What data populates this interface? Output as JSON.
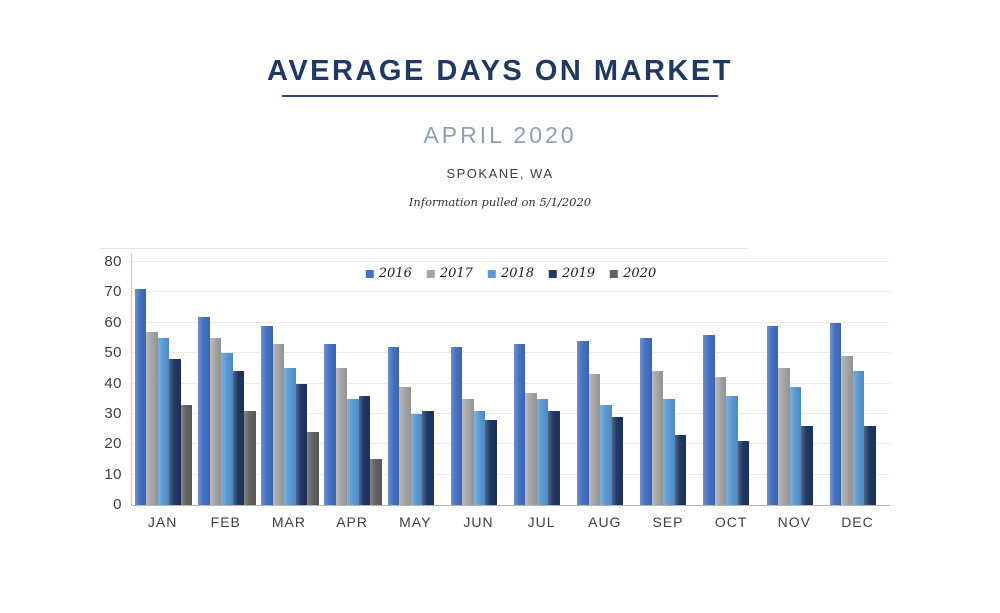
{
  "header": {
    "title": "AVERAGE DAYS ON MARKET",
    "subtitle": "APRIL 2020",
    "location": "SPOKANE, WA",
    "note": "Information pulled on 5/1/2020"
  },
  "colors": {
    "title": "#1F3864",
    "subtitle": "#8E9FBA",
    "axis_text": "#3f3f3f",
    "gridline": "#EBEBEB"
  },
  "chart_data": {
    "type": "bar",
    "title": "Average days on market by month, Spokane WA",
    "categories": [
      "JAN",
      "FEB",
      "MAR",
      "APR",
      "MAY",
      "JUN",
      "JUL",
      "AUG",
      "SEP",
      "OCT",
      "NOV",
      "DEC"
    ],
    "series": [
      {
        "name": "2016",
        "color": "#4472C4",
        "values": [
          71,
          62,
          59,
          53,
          52,
          52,
          53,
          54,
          55,
          56,
          59,
          60
        ]
      },
      {
        "name": "2017",
        "color": "#A6A6A6",
        "values": [
          57,
          55,
          53,
          45,
          39,
          35,
          37,
          43,
          44,
          42,
          45,
          49
        ]
      },
      {
        "name": "2018",
        "color": "#5B9BD5",
        "values": [
          55,
          50,
          45,
          35,
          30,
          31,
          35,
          33,
          35,
          36,
          39,
          44
        ]
      },
      {
        "name": "2019",
        "color": "#1F3864",
        "values": [
          48,
          44,
          40,
          36,
          31,
          28,
          31,
          29,
          23,
          21,
          26,
          26
        ]
      },
      {
        "name": "2020",
        "color": "#636363",
        "values": [
          33,
          31,
          24,
          15,
          null,
          null,
          null,
          null,
          null,
          null,
          null,
          null
        ]
      }
    ],
    "xlabel": "",
    "ylabel": "",
    "ylim": [
      0,
      80
    ],
    "ytick_step": 10,
    "grid": true,
    "legend_position": "top-center"
  }
}
